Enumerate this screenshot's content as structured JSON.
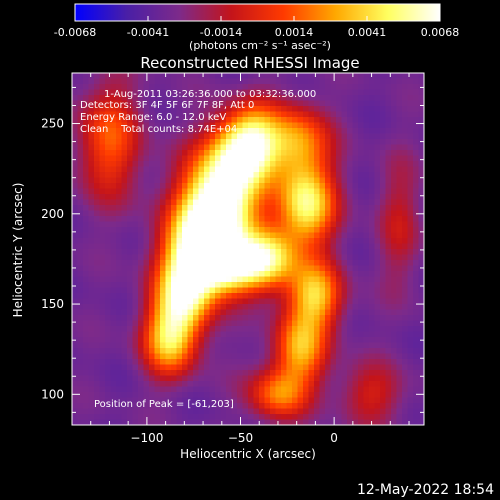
{
  "colorbar": {
    "tick_labels": [
      "-0.0068",
      "-0.0041",
      "-0.0014",
      "0.0014",
      "0.0041",
      "0.0068"
    ],
    "unit_label": "(photons cm⁻² s⁻¹ asec⁻²)",
    "colors": [
      "#0000ff",
      "#4a1fa6",
      "#7d2a8a",
      "#c4141a",
      "#ff3a00",
      "#ffa800",
      "#ffff60",
      "#ffffff"
    ]
  },
  "chart_data": {
    "type": "heatmap",
    "title": "Reconstructed RHESSI Image",
    "xlabel": "Heliocentric X (arcsec)",
    "ylabel": "Heliocentric Y (arcsec)",
    "xlim": [
      -140,
      48
    ],
    "ylim": [
      83,
      278
    ],
    "x_ticks": [
      -100,
      -50,
      0
    ],
    "y_ticks": [
      100,
      150,
      200,
      250
    ],
    "x_tick_labels": [
      "−100",
      "−50",
      "0"
    ],
    "y_tick_labels": [
      "100",
      "150",
      "200",
      "250"
    ],
    "value_range": [
      -0.0068,
      0.0068
    ],
    "annotations": {
      "line1": "1-Aug-2011 03:26:36.000 to 03:32:36.000",
      "line2": "Detectors: 3F 4F 5F 6F 7F 8F, Att 0",
      "line3": "Energy Range: 6.0 - 12.0 keV",
      "line4": "Clean    Total counts: 8.74E+04",
      "peak": "Position of Peak = [-61,203]"
    },
    "peak": {
      "x": -61,
      "y": 203
    },
    "sources": [
      {
        "x": -62,
        "y": 205,
        "sx": 14,
        "sy": 18,
        "amp": 1.0
      },
      {
        "x": -52,
        "y": 235,
        "sx": 12,
        "sy": 14,
        "amp": 0.55
      },
      {
        "x": -42,
        "y": 240,
        "sx": 10,
        "sy": 15,
        "amp": 0.45
      },
      {
        "x": -72,
        "y": 180,
        "sx": 13,
        "sy": 15,
        "amp": 0.75
      },
      {
        "x": -80,
        "y": 155,
        "sx": 11,
        "sy": 15,
        "amp": 0.7
      },
      {
        "x": -88,
        "y": 130,
        "sx": 10,
        "sy": 14,
        "amp": 0.6
      },
      {
        "x": -55,
        "y": 170,
        "sx": 12,
        "sy": 10,
        "amp": 0.6
      },
      {
        "x": -35,
        "y": 175,
        "sx": 11,
        "sy": 12,
        "amp": 0.65
      },
      {
        "x": -15,
        "y": 205,
        "sx": 11,
        "sy": 16,
        "amp": 0.72
      },
      {
        "x": -20,
        "y": 240,
        "sx": 12,
        "sy": 14,
        "amp": 0.5
      },
      {
        "x": -10,
        "y": 155,
        "sx": 10,
        "sy": 13,
        "amp": 0.6
      },
      {
        "x": -18,
        "y": 125,
        "sx": 10,
        "sy": 14,
        "amp": 0.55
      },
      {
        "x": -30,
        "y": 100,
        "sx": 11,
        "sy": 10,
        "amp": 0.45
      },
      {
        "x": -120,
        "y": 240,
        "sx": 12,
        "sy": 22,
        "amp": 0.4
      },
      {
        "x": 20,
        "y": 100,
        "sx": 12,
        "sy": 12,
        "amp": 0.25
      },
      {
        "x": 35,
        "y": 195,
        "sx": 8,
        "sy": 25,
        "amp": 0.2
      }
    ]
  },
  "timestamp": "12-May-2022 18:54"
}
